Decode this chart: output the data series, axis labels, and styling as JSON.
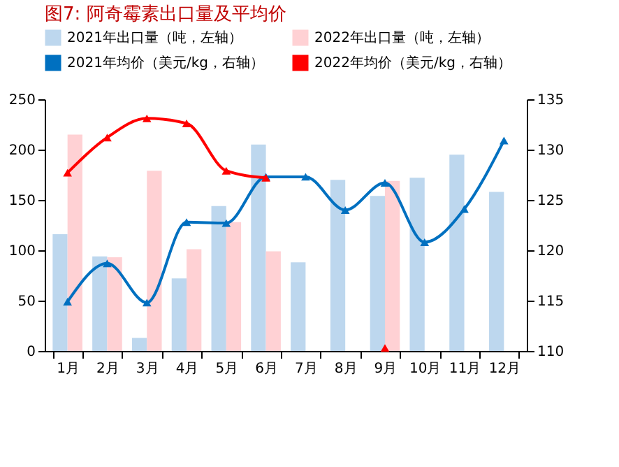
{
  "chart_data": {
    "type": "bar",
    "title": "图7:    阿奇霉素出口量及平均价",
    "categories": [
      "1月",
      "2月",
      "3月",
      "4月",
      "5月",
      "6月",
      "7月",
      "8月",
      "9月",
      "10月",
      "11月",
      "12月"
    ],
    "series": [
      {
        "name": "2021年出口量（吨，左轴）",
        "color": "#bdd7ee",
        "values": [
          116,
          94,
          13,
          72,
          144,
          205,
          88,
          170,
          154,
          172,
          195,
          158
        ]
      },
      {
        "name": "2022年出口量（吨，左轴）",
        "color": "#ffd1d4",
        "values": [
          215,
          93,
          179,
          101,
          128,
          99,
          null,
          null,
          169,
          null,
          null,
          null
        ]
      },
      {
        "name": "2021年均价（美元/kg，右轴）",
        "color": "#0070c0",
        "type": "line",
        "axis": "y2",
        "values": [
          114.9,
          118.7,
          114.8,
          122.8,
          122.7,
          127.3,
          127.3,
          124.0,
          126.7,
          120.8,
          124.1,
          130.9
        ]
      },
      {
        "name": "2022年均价（美元/kg，右轴）",
        "color": "#ff0000",
        "type": "line",
        "axis": "y2",
        "values": [
          127.7,
          131.2,
          133.1,
          132.6,
          127.9,
          127.2,
          null,
          null,
          110.3,
          null,
          null,
          null
        ]
      }
    ],
    "ylim": [
      0,
      250
    ],
    "yticks": [
      0,
      50,
      100,
      150,
      200,
      250
    ],
    "y2lim": [
      110,
      135
    ],
    "y2ticks": [
      110,
      115,
      120,
      125,
      130,
      135
    ],
    "marker": "triangle",
    "legend": "top",
    "grid": false
  }
}
